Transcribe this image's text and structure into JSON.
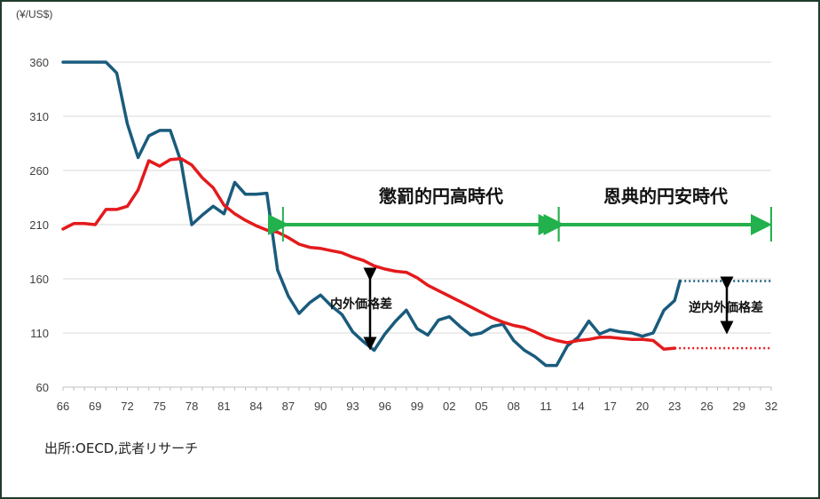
{
  "chart_data": {
    "type": "line",
    "ylabel": "(¥/US$)",
    "ylim": [
      60,
      360
    ],
    "yticks": [
      60,
      110,
      160,
      210,
      260,
      310,
      360
    ],
    "xlim": [
      1966,
      2032
    ],
    "xticks": [
      1966,
      1969,
      1972,
      1975,
      1978,
      1981,
      1984,
      1987,
      1990,
      1993,
      1996,
      1999,
      2002,
      2005,
      2008,
      2011,
      2014,
      2017,
      2020,
      2023,
      2026,
      2029,
      2032
    ],
    "xtick_labels": [
      "66",
      "69",
      "72",
      "75",
      "78",
      "81",
      "84",
      "87",
      "90",
      "93",
      "96",
      "99",
      "02",
      "05",
      "08",
      "11",
      "14",
      "17",
      "20",
      "23",
      "26",
      "29",
      "32"
    ],
    "grid": "horizontal",
    "series": [
      {
        "color": "#1a5b7c",
        "x": [
          1966,
          1967,
          1968,
          1969,
          1970,
          1971,
          1972,
          1973,
          1974,
          1975,
          1976,
          1977,
          1978,
          1979,
          1980,
          1981,
          1982,
          1983,
          1984,
          1985,
          1986,
          1987,
          1988,
          1989,
          1990,
          1991,
          1992,
          1993,
          1994,
          1995,
          1996,
          1997,
          1998,
          1999,
          2000,
          2001,
          2002,
          2003,
          2004,
          2005,
          2006,
          2007,
          2008,
          2009,
          2010,
          2011,
          2012,
          2013,
          2014,
          2015,
          2016,
          2017,
          2018,
          2019,
          2020,
          2021,
          2022,
          2023,
          2023.5
        ],
        "y": [
          360,
          360,
          360,
          360,
          360,
          350,
          303,
          272,
          292,
          297,
          297,
          268,
          210,
          219,
          227,
          220,
          249,
          238,
          238,
          239,
          168,
          144,
          128,
          138,
          145,
          135,
          127,
          111,
          102,
          94,
          109,
          121,
          131,
          114,
          108,
          122,
          125,
          116,
          108,
          110,
          116,
          118,
          103,
          94,
          88,
          80,
          80,
          98,
          106,
          121,
          109,
          113,
          111,
          110,
          107,
          110,
          131,
          140,
          158
        ],
        "projection": {
          "x": [
            2023.5,
            2032
          ],
          "y": [
            158,
            158
          ]
        }
      },
      {
        "color": "#e41a1c",
        "x": [
          1966,
          1967,
          1968,
          1969,
          1970,
          1971,
          1972,
          1973,
          1974,
          1975,
          1976,
          1977,
          1978,
          1979,
          1980,
          1981,
          1982,
          1983,
          1984,
          1985,
          1986,
          1987,
          1988,
          1989,
          1990,
          1991,
          1992,
          1993,
          1994,
          1995,
          1996,
          1997,
          1998,
          1999,
          2000,
          2001,
          2002,
          2003,
          2004,
          2005,
          2006,
          2007,
          2008,
          2009,
          2010,
          2011,
          2012,
          2013,
          2014,
          2015,
          2016,
          2017,
          2018,
          2019,
          2020,
          2021,
          2022,
          2023
        ],
        "y": [
          206,
          211,
          211,
          210,
          224,
          224,
          227,
          242,
          269,
          264,
          270,
          271,
          265,
          253,
          244,
          228,
          220,
          214,
          209,
          205,
          203,
          198,
          192,
          189,
          188,
          186,
          184,
          180,
          177,
          172,
          169,
          167,
          166,
          161,
          154,
          149,
          144,
          139,
          134,
          129,
          124,
          120,
          117,
          115,
          111,
          106,
          103,
          101,
          103,
          104,
          106,
          106,
          105,
          104,
          104,
          103,
          95,
          96
        ],
        "projection": {
          "x": [
            2023,
            2032
          ],
          "y": [
            96,
            96
          ]
        }
      }
    ],
    "annotations": {
      "era1": "懲罰的円高時代",
      "era2": "恩典的円安時代",
      "gap1": "内外価格差",
      "gap2": "逆内外価格差"
    },
    "source": "出所:OECD,武者リサーチ"
  }
}
